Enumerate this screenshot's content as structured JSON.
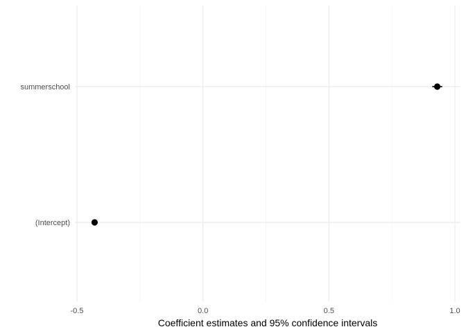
{
  "chart_data": {
    "type": "scatter",
    "title": "",
    "xlabel": "Coefficient estimates and 95% confidence intervals",
    "ylabel": "",
    "categories": [
      "summerschool",
      "(Intercept)"
    ],
    "points": [
      {
        "term": "summerschool",
        "estimate": 0.93,
        "conf_low": 0.91,
        "conf_high": 0.95
      },
      {
        "term": "(Intercept)",
        "estimate": -0.43,
        "conf_low": -0.44,
        "conf_high": -0.42
      }
    ],
    "x_ticks": [
      -0.5,
      0.0,
      0.5,
      1.0
    ],
    "x_tick_labels": [
      "-0.5",
      "0.0",
      "0.5",
      "1.0"
    ],
    "xlim": [
      -0.5,
      1.0
    ],
    "grid": true,
    "legend": "none",
    "colors": {
      "point": "#000000",
      "grid_major": "#ebebeb",
      "grid_minor": "#f5f5f5",
      "text": "#4d4d4d",
      "axis_title": "#000000"
    }
  }
}
